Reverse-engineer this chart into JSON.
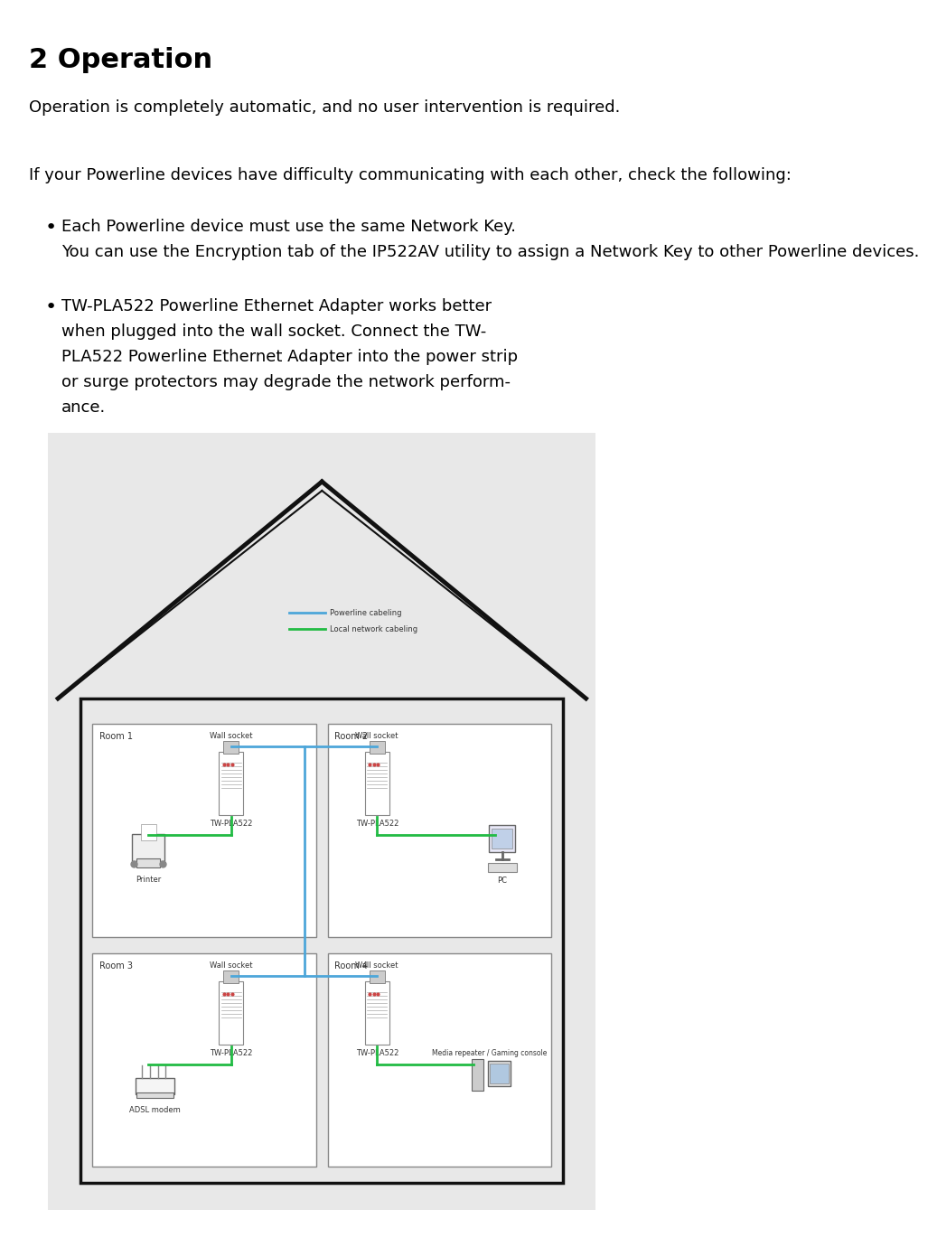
{
  "title": "2 Operation",
  "para1": "Operation is completely automatic, and no user intervention is required.",
  "para2": "If your Powerline devices have difficulty communicating with each other, check the following:",
  "bullet1_main": "Each Powerline device must use the same Network Key.",
  "bullet1_sub": "You can use the Encryption tab of the IP522AV utility to assign a Network Key to other Powerline devices.",
  "bullet2_main": "TW-PLA522 Powerline Ethernet Adapter works better when plugged into the wall socket. Connect the TW-PLA522 Powerline Ethernet Adapter into the power strip or surge protectors may degrade the network performance.",
  "bg_color": "#ffffff",
  "text_color": "#000000",
  "diagram_bg": "#e8e8e8",
  "room_bg": "#ffffff",
  "blue_line": "#4da6d9",
  "green_line": "#22bb44",
  "legend_powerline": "Powerline cabeling",
  "legend_local": "Local network cabeling",
  "room1_label": "Room 1",
  "room2_label": "Room 2",
  "room3_label": "Room 3",
  "room4_label": "Room 4",
  "wall_socket": "Wall socket",
  "tw_pla522": "TW-PLA522",
  "printer_label": "Printer",
  "pc_label": "PC",
  "adsl_label": "ADSL modem",
  "media_label": "Media repeater / Gaming console"
}
